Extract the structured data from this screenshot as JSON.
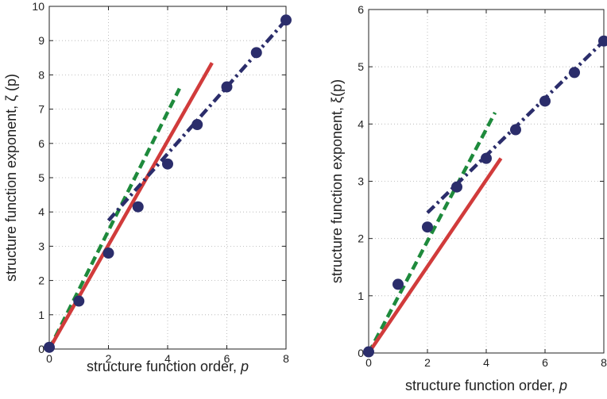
{
  "chart_data": [
    {
      "type": "scatter",
      "xlabel_text": "structure function order, ",
      "xlabel_var": "p",
      "ylabel": "structure function exponent, ζ (p)",
      "xlim": [
        0,
        8
      ],
      "ylim": [
        0,
        10
      ],
      "xticks": [
        "0",
        "2",
        "4",
        "6",
        "8"
      ],
      "yticks": [
        "0",
        "1",
        "2",
        "3",
        "4",
        "5",
        "6",
        "7",
        "8",
        "9",
        "10"
      ],
      "grid": true,
      "points": {
        "x": [
          0,
          1,
          2,
          3,
          4,
          5,
          6,
          7,
          8
        ],
        "y": [
          0.05,
          1.4,
          2.8,
          4.15,
          5.4,
          6.55,
          7.65,
          8.65,
          9.6
        ],
        "color": "#2b2d6b"
      },
      "lines": [
        {
          "style": "dashed",
          "color": "#1e8a3c",
          "x": [
            0,
            4.4
          ],
          "y": [
            0,
            7.6
          ]
        },
        {
          "style": "solid",
          "color": "#d13b3b",
          "x": [
            0,
            5.5
          ],
          "y": [
            0,
            8.35
          ]
        },
        {
          "style": "dashdot",
          "color": "#2b2d6b",
          "x": [
            2,
            8
          ],
          "y": [
            3.75,
            9.6
          ]
        }
      ]
    },
    {
      "type": "scatter",
      "xlabel_text": "structure function order, ",
      "xlabel_var": "p",
      "ylabel": "structure function exponent, ξ(p)",
      "xlim": [
        0,
        8
      ],
      "ylim": [
        0,
        6
      ],
      "xticks": [
        "0",
        "2",
        "4",
        "6",
        "8"
      ],
      "yticks": [
        "0",
        "1",
        "2",
        "3",
        "4",
        "5",
        "6"
      ],
      "grid": true,
      "points": {
        "x": [
          0,
          1,
          2,
          3,
          4,
          5,
          6,
          7,
          8
        ],
        "y": [
          0.02,
          1.2,
          2.2,
          2.9,
          3.4,
          3.9,
          4.4,
          4.9,
          5.45
        ],
        "color": "#2b2d6b"
      },
      "lines": [
        {
          "style": "dashed",
          "color": "#1e8a3c",
          "x": [
            0,
            4.3
          ],
          "y": [
            0,
            4.2
          ]
        },
        {
          "style": "solid",
          "color": "#d13b3b",
          "x": [
            0,
            4.5
          ],
          "y": [
            0,
            3.4
          ]
        },
        {
          "style": "dashdot",
          "color": "#2b2d6b",
          "x": [
            2,
            8
          ],
          "y": [
            2.45,
            5.45
          ]
        }
      ]
    }
  ]
}
